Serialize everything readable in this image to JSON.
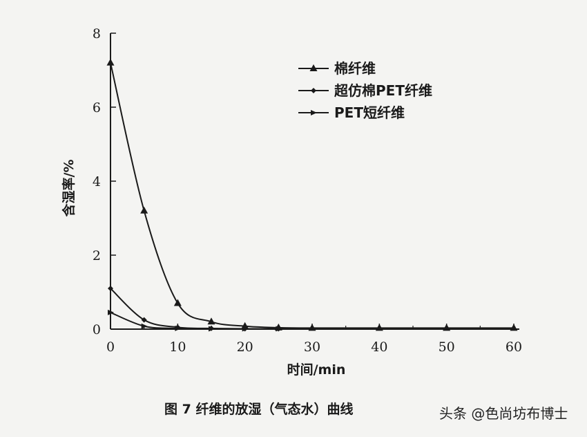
{
  "chart_data": {
    "type": "line",
    "title": "",
    "xlabel": "时间/min",
    "ylabel": "含湿率/%",
    "xlim": [
      0,
      60
    ],
    "ylim": [
      0,
      8
    ],
    "xticks": [
      0,
      10,
      20,
      30,
      40,
      50,
      60
    ],
    "yticks": [
      0,
      2,
      4,
      6,
      8
    ],
    "grid": false,
    "legend_position": "top-right",
    "series": [
      {
        "name": "棉纤维",
        "marker": "triangle",
        "x": [
          0,
          5,
          10,
          15,
          20,
          25,
          30,
          40,
          50,
          60
        ],
        "y": [
          7.2,
          3.2,
          0.7,
          0.2,
          0.08,
          0.04,
          0.03,
          0.03,
          0.03,
          0.03
        ]
      },
      {
        "name": "超仿棉PET纤维",
        "marker": "diamond",
        "x": [
          0,
          5,
          10,
          15,
          20,
          25
        ],
        "y": [
          1.1,
          0.25,
          0.05,
          0.02,
          0.01,
          0.01
        ]
      },
      {
        "name": "PET短纤维",
        "marker": "right-triangle",
        "x": [
          0,
          5,
          10,
          15,
          20,
          25
        ],
        "y": [
          0.45,
          0.08,
          0.02,
          0.01,
          0.01,
          0.01
        ]
      }
    ]
  },
  "caption": "图 7 纤维的放湿（气态水）曲线",
  "watermark": "头条 @色尚坊布博士",
  "colors": {
    "ink": "#1a1a1a",
    "background": "#f4f4f2"
  }
}
